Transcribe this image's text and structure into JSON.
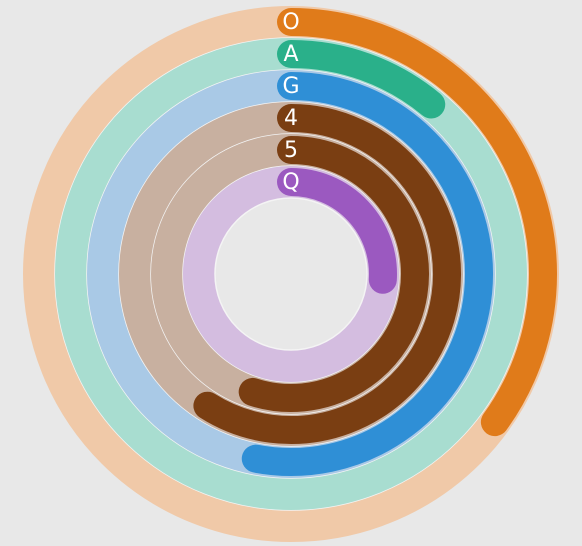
{
  "chart_data": {
    "type": "radial_bar",
    "categories": [
      "O",
      "A",
      "G",
      "4",
      "5",
      "Q"
    ],
    "values": [
      35,
      11,
      53,
      59,
      55,
      26
    ],
    "colors": [
      "#e07b1a",
      "#2ab08a",
      "#2f8fd6",
      "#7a3e12",
      "#7a3e12",
      "#9b59c0"
    ],
    "track_colors": [
      "#f0c9a8",
      "#a8ddd0",
      "#a9c9e6",
      "#c8b0a0",
      "#c8b0a0",
      "#d4bde0"
    ],
    "ylim": [
      0,
      100
    ]
  }
}
